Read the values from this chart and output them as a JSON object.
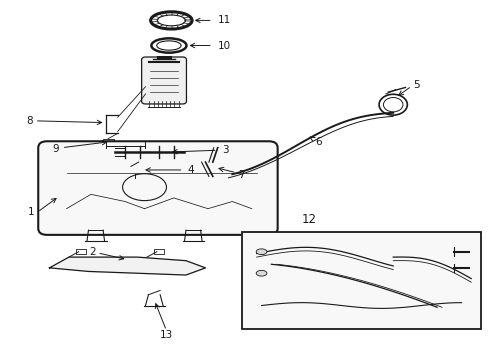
{
  "bg_color": "#ffffff",
  "line_color": "#1a1a1a",
  "fig_width": 4.89,
  "fig_height": 3.6,
  "dpi": 100,
  "labels": {
    "1": [
      0.1,
      0.345,
      0.175,
      0.395
    ],
    "2": [
      0.195,
      0.29,
      0.26,
      0.315
    ],
    "3": [
      0.455,
      0.545,
      0.4,
      0.555
    ],
    "4": [
      0.39,
      0.5,
      0.33,
      0.505
    ],
    "5": [
      0.83,
      0.735,
      0.795,
      0.71
    ],
    "6": [
      0.645,
      0.6,
      0.62,
      0.615
    ],
    "7": [
      0.49,
      0.485,
      0.445,
      0.498
    ],
    "8": [
      0.07,
      0.615,
      0.13,
      0.625
    ],
    "9": [
      0.135,
      0.565,
      0.185,
      0.568
    ],
    "10": [
      0.455,
      0.875,
      0.41,
      0.87
    ],
    "11": [
      0.455,
      0.945,
      0.415,
      0.94
    ],
    "12": [
      0.66,
      0.275,
      null,
      null
    ],
    "13": [
      0.345,
      0.06,
      0.32,
      0.16
    ]
  }
}
